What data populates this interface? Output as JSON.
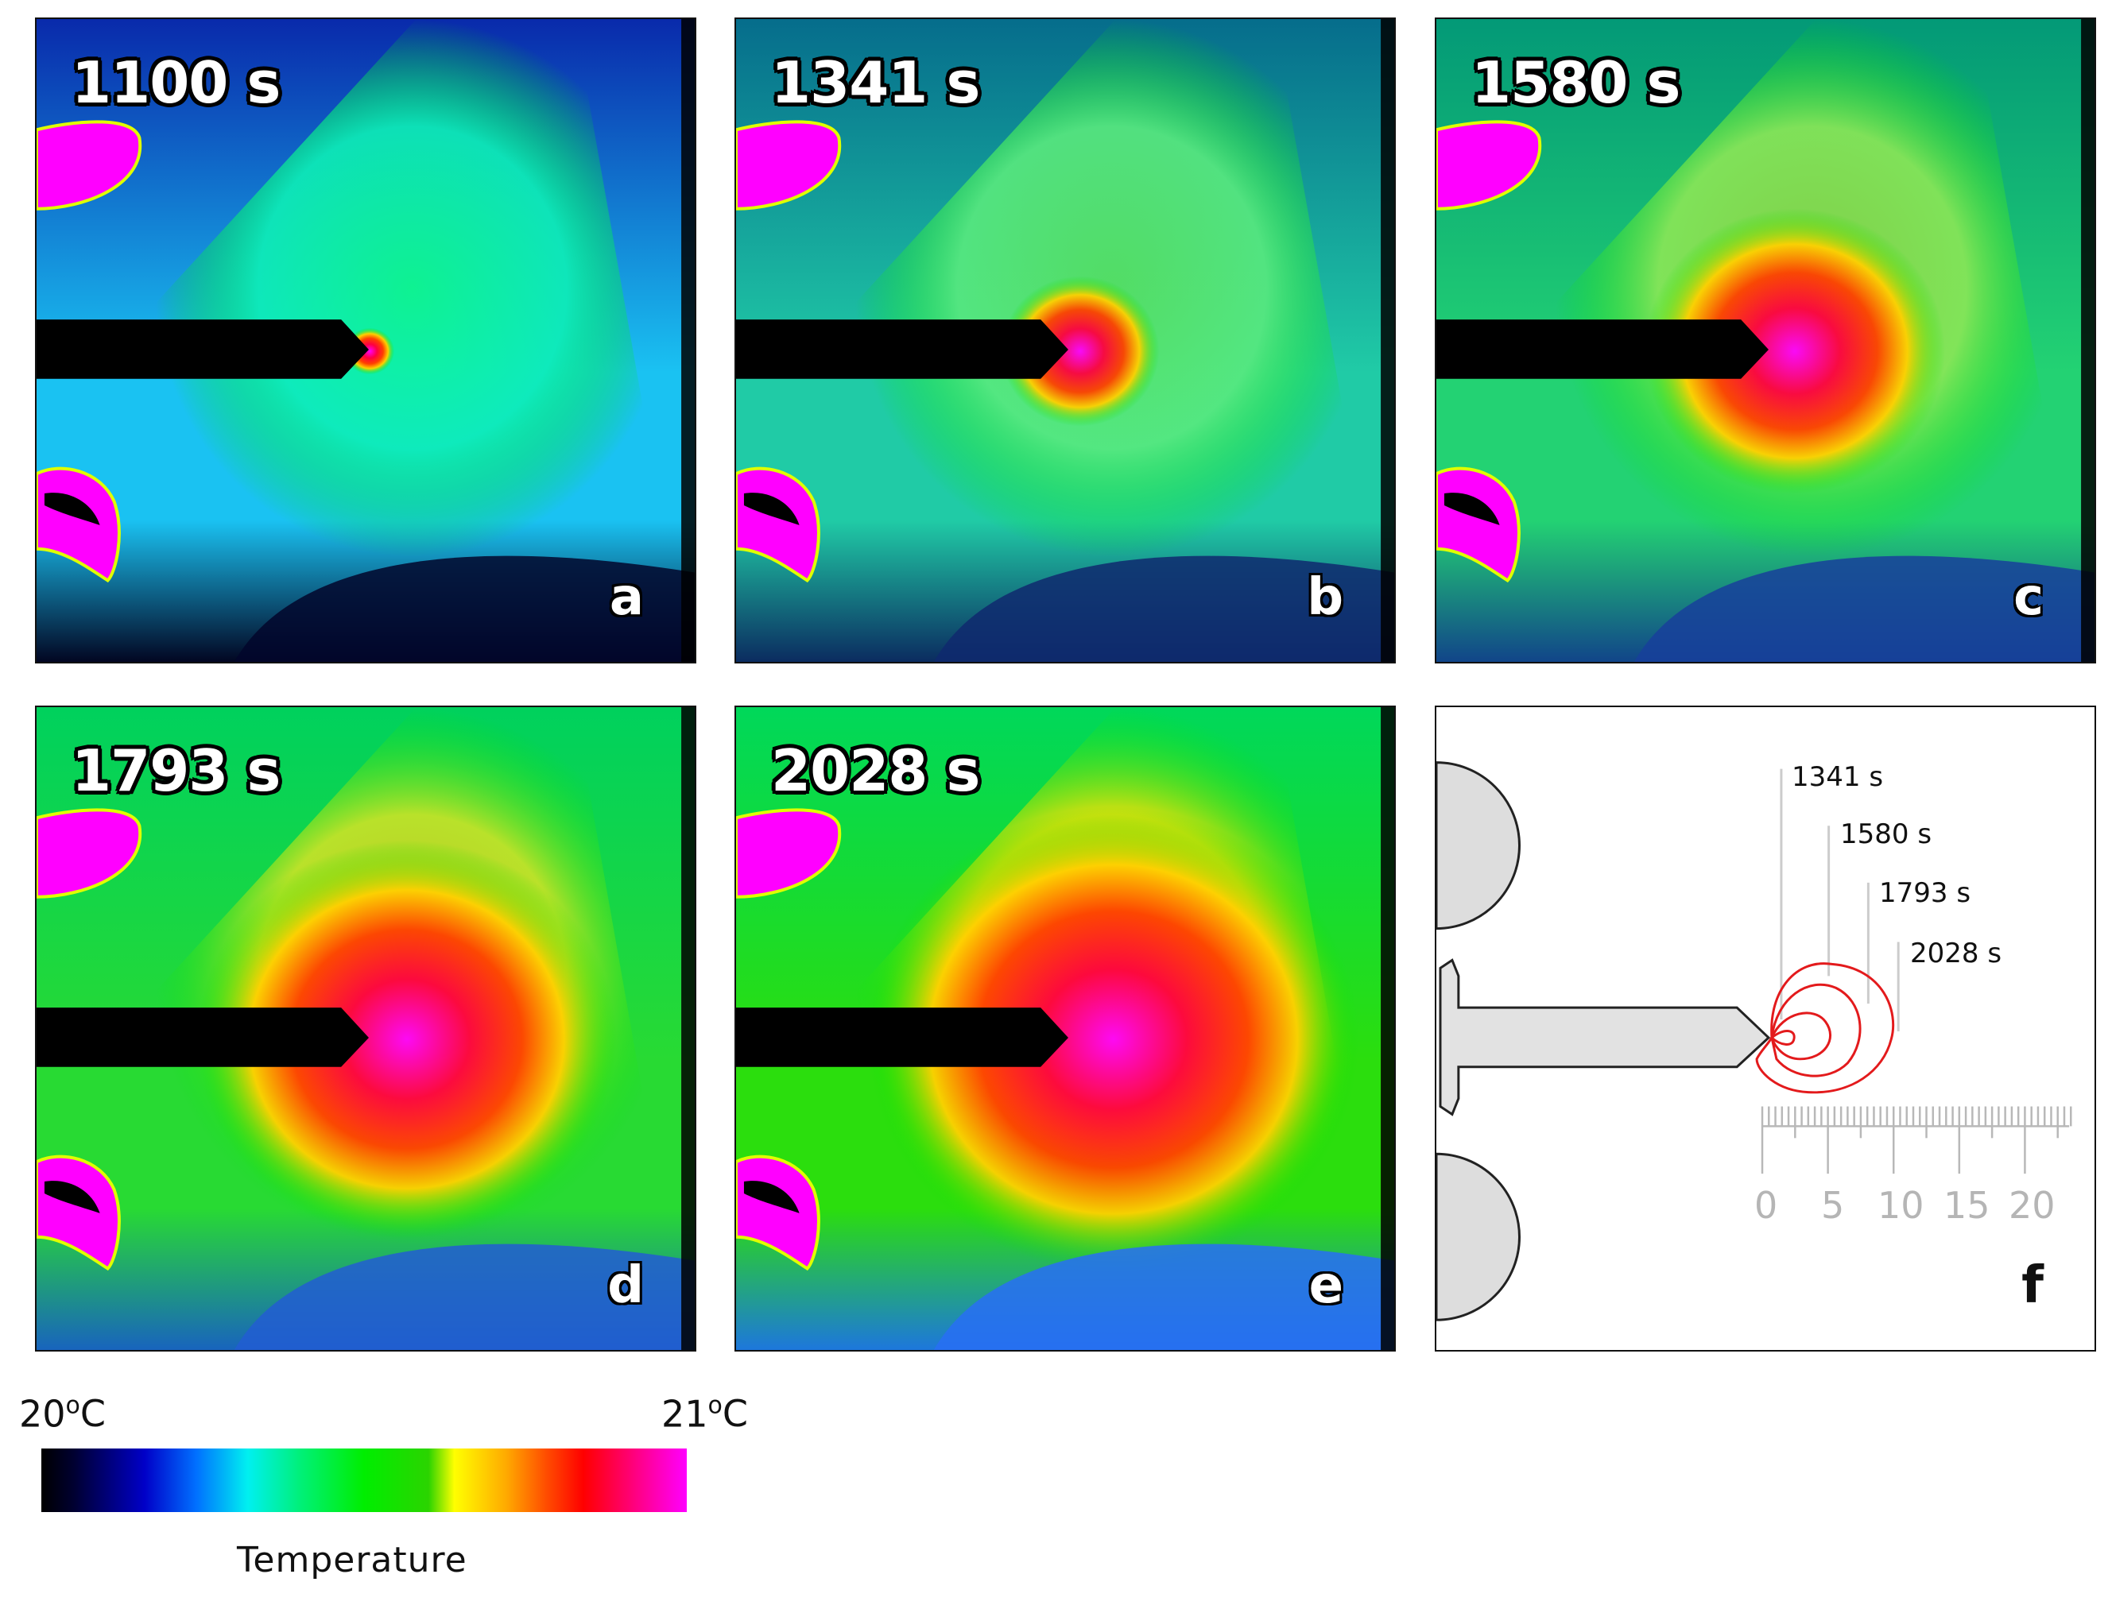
{
  "panels": [
    {
      "time": "1100 s",
      "letter": "a",
      "heat": 0.05,
      "hot": 0.02
    },
    {
      "time": "1341 s",
      "letter": "b",
      "heat": 0.35,
      "hot": 0.25
    },
    {
      "time": "1580 s",
      "letter": "c",
      "heat": 0.55,
      "hot": 0.55
    },
    {
      "time": "1793 s",
      "letter": "d",
      "heat": 0.8,
      "hot": 0.8
    },
    {
      "time": "2028 s",
      "letter": "e",
      "heat": 0.95,
      "hot": 0.95
    }
  ],
  "schematic": {
    "letter": "f",
    "contour_labels": [
      "1341 s",
      "1580 s",
      "1793 s",
      "2028 s"
    ],
    "scale_ticks": [
      "0",
      "5",
      "10",
      "15",
      "20"
    ],
    "contour_color": "#e31a1c"
  },
  "colorbar": {
    "min": "20",
    "max": "21",
    "unit": "oC",
    "title": "Temperature"
  }
}
